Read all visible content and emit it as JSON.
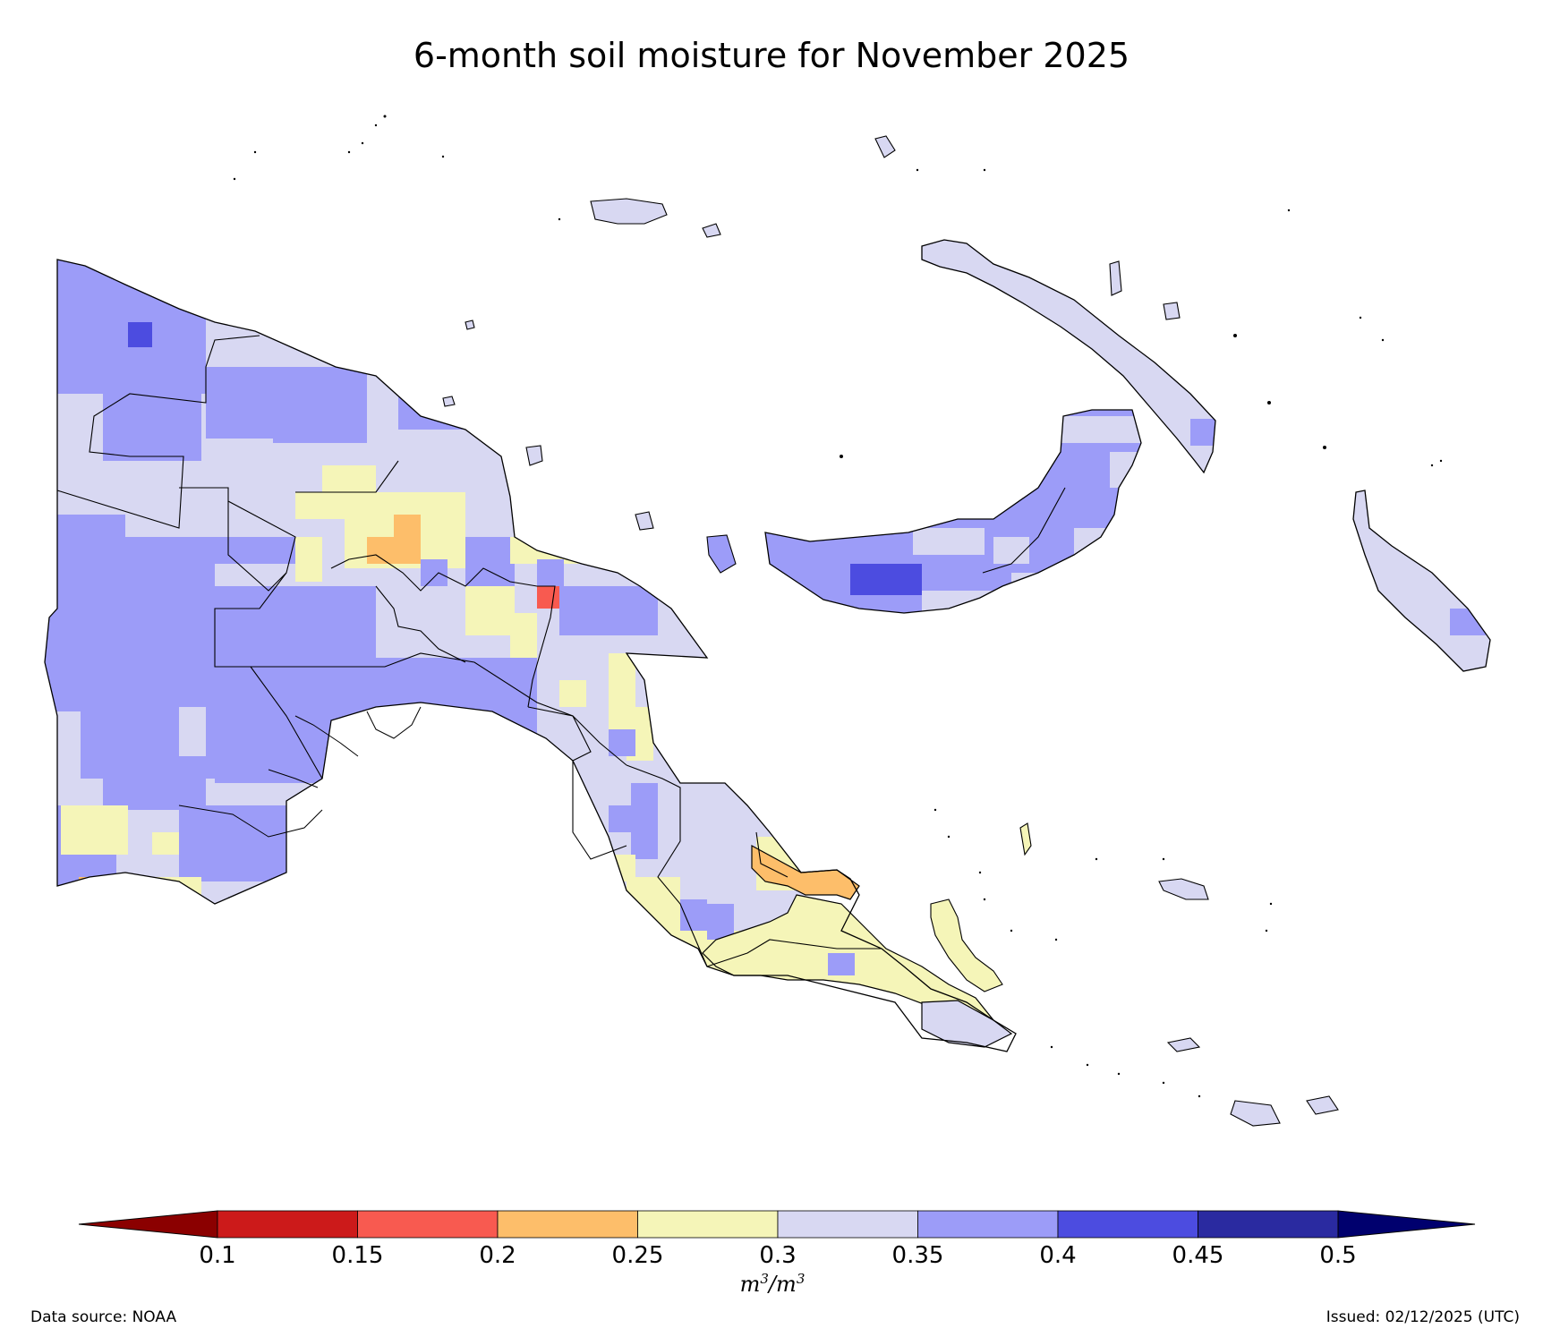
{
  "title": "6-month soil moisture for November 2025",
  "colorbar": {
    "ticks": [
      "0.1",
      "0.15",
      "0.2",
      "0.25",
      "0.3",
      "0.35",
      "0.4",
      "0.45",
      "0.5"
    ],
    "unit_base": "m",
    "unit_exp": "3",
    "unit_sep": "/",
    "bins": [
      {
        "range": "<0.1",
        "color": "#8b0000"
      },
      {
        "range": "0.1-0.15",
        "color": "#cc1a1a"
      },
      {
        "range": "0.15-0.2",
        "color": "#f85a50"
      },
      {
        "range": "0.2-0.25",
        "color": "#fdbe6a"
      },
      {
        "range": "0.25-0.3",
        "color": "#f5f5b8"
      },
      {
        "range": "0.3-0.35",
        "color": "#d8d8f2"
      },
      {
        "range": "0.35-0.4",
        "color": "#9c9cf8"
      },
      {
        "range": "0.4-0.45",
        "color": "#4c4ce0"
      },
      {
        "range": "0.45-0.5",
        "color": "#2a2aa0"
      },
      {
        "range": ">0.5",
        "color": "#00006e"
      }
    ]
  },
  "footer": {
    "source": "Data source: NOAA",
    "issued": "Issued: 02/12/2025 (UTC)"
  }
}
